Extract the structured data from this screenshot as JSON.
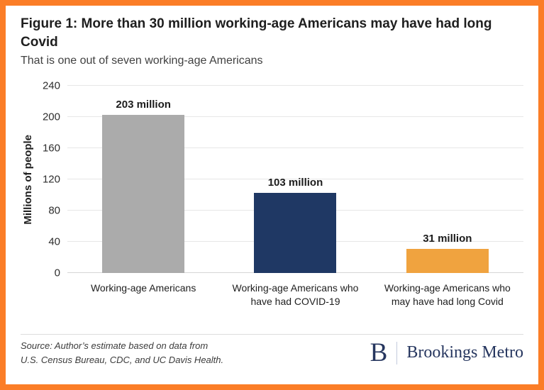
{
  "frame": {
    "border_color": "#FB7D27",
    "background": "#FFFFFF"
  },
  "header": {
    "title": "Figure 1: More than 30 million working-age Americans may have had long Covid",
    "subtitle": "That is one out of seven working-age Americans"
  },
  "chart_data": {
    "type": "bar",
    "categories": [
      "Working-age Americans",
      "Working-age Americans who have had COVID-19",
      "Working-age Americans who may have had long Covid"
    ],
    "values": [
      203,
      103,
      31
    ],
    "bar_labels": [
      "203 million",
      "103 million",
      "31 million"
    ],
    "bar_colors": [
      "#ABABAB",
      "#1F3864",
      "#F0A33F"
    ],
    "title": "",
    "xlabel": "",
    "ylabel": "Millions of people",
    "yticks": [
      0,
      40,
      80,
      120,
      160,
      200,
      240
    ],
    "ylim": [
      0,
      240
    ],
    "grid": true,
    "gridline_color": "#E7E7E7",
    "legend_position": "none"
  },
  "footer": {
    "source_line1": "Source: Author’s estimate based on data from",
    "source_line2": "U.S. Census Bureau, CDC, and UC Davis Health.",
    "logo_letter": "B",
    "logo_text": "Brookings Metro",
    "logo_color": "#26365F"
  }
}
